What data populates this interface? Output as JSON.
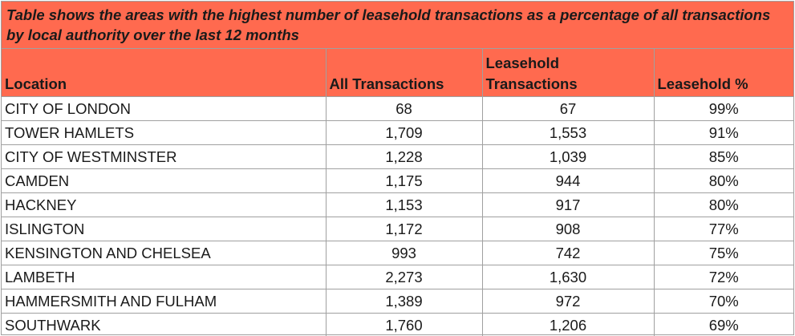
{
  "caption": "Table shows the areas with the highest number of leasehold transactions as a percentage of all transactions by local authority over the last 12 months",
  "headers": {
    "location": "Location",
    "all": "All Transactions",
    "leasehold_line1": "Leasehold",
    "leasehold_line2": "Transactions",
    "pct": "Leasehold %"
  },
  "rows": [
    {
      "location": "CITY OF LONDON",
      "all": "68",
      "leasehold": "67",
      "pct": "99%"
    },
    {
      "location": "TOWER HAMLETS",
      "all": "1,709",
      "leasehold": "1,553",
      "pct": "91%"
    },
    {
      "location": "CITY OF WESTMINSTER",
      "all": "1,228",
      "leasehold": "1,039",
      "pct": "85%"
    },
    {
      "location": "CAMDEN",
      "all": "1,175",
      "leasehold": "944",
      "pct": "80%"
    },
    {
      "location": "HACKNEY",
      "all": "1,153",
      "leasehold": "917",
      "pct": "80%"
    },
    {
      "location": "ISLINGTON",
      "all": "1,172",
      "leasehold": "908",
      "pct": "77%"
    },
    {
      "location": "KENSINGTON AND CHELSEA",
      "all": "993",
      "leasehold": "742",
      "pct": "75%"
    },
    {
      "location": "LAMBETH",
      "all": "2,273",
      "leasehold": "1,630",
      "pct": "72%"
    },
    {
      "location": "HAMMERSMITH AND FULHAM",
      "all": "1,389",
      "leasehold": "972",
      "pct": "70%"
    },
    {
      "location": "SOUTHWARK",
      "all": "1,760",
      "leasehold": "1,206",
      "pct": "69%"
    }
  ],
  "colors": {
    "header_bg": "#ff6a4f",
    "border": "#a0a0a0"
  }
}
